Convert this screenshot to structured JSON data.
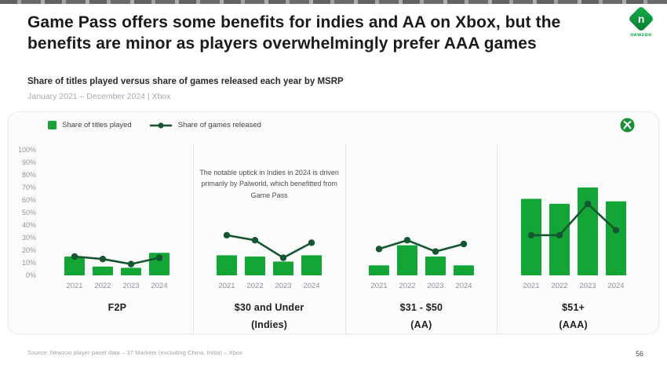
{
  "page": {
    "title": "Game Pass offers some benefits for indies and AA on Xbox, but the benefits are minor as players overwhelmingly prefer AAA games",
    "subtitle": "Share of titles played versus share of games released each year by MSRP",
    "date_range": "January 2021 – December 2024 | Xbox",
    "source": "Source: Newzoo player panel data – 37 Markets (excluding China, India) – Xbox",
    "page_number": "56",
    "brand": "newzoo",
    "brand_initial": "n"
  },
  "colors": {
    "bar": "#14a537",
    "line": "#14562f",
    "brand_green": "#0a9e3c",
    "xbox_green": "#169232",
    "year_label": "#8d929b"
  },
  "chart_data": {
    "type": "bar",
    "title": "Share of titles played versus share of games released each year by MSRP",
    "categories": [
      "2021",
      "2022",
      "2023",
      "2024"
    ],
    "ylim": [
      0,
      100
    ],
    "yticks": [
      "100%",
      "90%",
      "80%",
      "70%",
      "60%",
      "50%",
      "40%",
      "30%",
      "20%",
      "10%",
      "0%"
    ],
    "legend": [
      {
        "label": "Share of titles played",
        "type": "bar"
      },
      {
        "label": "Share of games released",
        "type": "line"
      }
    ],
    "panels": [
      {
        "title": "F2P",
        "subtitle": "",
        "series": [
          {
            "name": "Share of titles played",
            "values": [
              15,
              7,
              6,
              18
            ]
          },
          {
            "name": "Share of games released",
            "values": [
              15,
              13,
              9,
              14
            ]
          }
        ]
      },
      {
        "title": "$30 and Under",
        "subtitle": "(Indies)",
        "annotation": "The notable uptick in Indies in 2024 is driven primarily by Palworld, which benefitted from Game Pass",
        "series": [
          {
            "name": "Share of titles played",
            "values": [
              16,
              15,
              11,
              16
            ]
          },
          {
            "name": "Share of games released",
            "values": [
              32,
              28,
              14,
              26
            ]
          }
        ]
      },
      {
        "title": "$31 - $50",
        "subtitle": "(AA)",
        "series": [
          {
            "name": "Share of titles played",
            "values": [
              8,
              24,
              15,
              8
            ]
          },
          {
            "name": "Share of games released",
            "values": [
              21,
              28,
              19,
              25
            ]
          }
        ]
      },
      {
        "title": "$51+",
        "subtitle": "(AAA)",
        "series": [
          {
            "name": "Share of titles played",
            "values": [
              61,
              57,
              70,
              59
            ]
          },
          {
            "name": "Share of games released",
            "values": [
              32,
              32,
              57,
              36
            ]
          }
        ]
      }
    ]
  }
}
